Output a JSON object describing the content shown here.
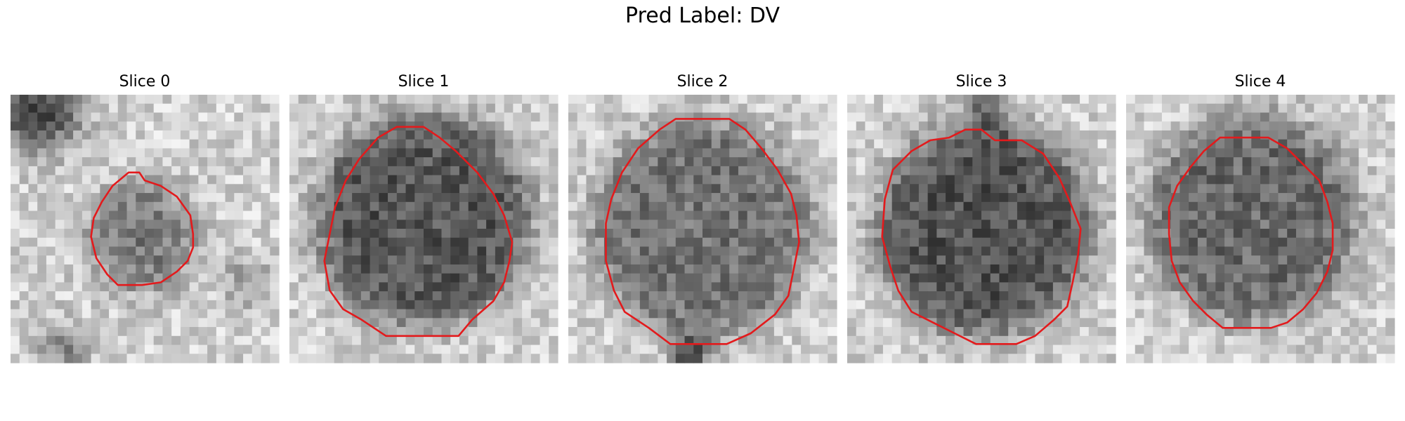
{
  "title": "Pred Label: DV",
  "contour_color": "#e31a1c",
  "panels": [
    {
      "title": "Slice 0"
    },
    {
      "title": "Slice 1"
    },
    {
      "title": "Slice 2"
    },
    {
      "title": "Slice 3"
    },
    {
      "title": "Slice 4"
    }
  ]
}
